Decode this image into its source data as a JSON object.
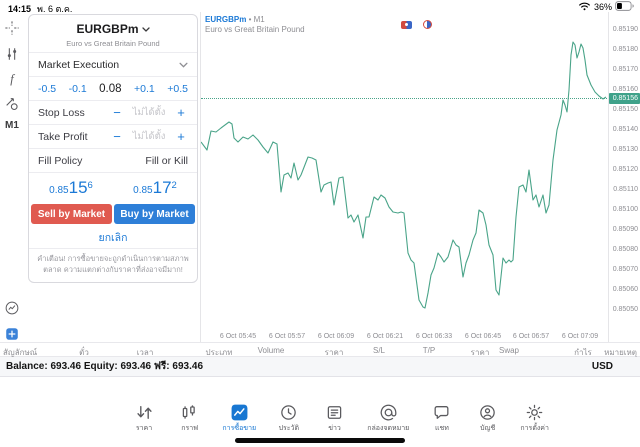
{
  "colors": {
    "accent_blue": "#1b79d6",
    "sell_red": "#e05a50",
    "buy_blue": "#2e7fd8",
    "chart_line": "#4aa489",
    "price_tag": "#3fa28a"
  },
  "status_bar": {
    "time": "14:15",
    "date": "พ. 6 ต.ค.",
    "battery_percent": "36%"
  },
  "sidebar": {
    "timeframe": "M1"
  },
  "order_panel": {
    "symbol": "EURGBPm",
    "symbol_description": "Euro vs Great Britain Pound",
    "execution_mode": "Market Execution",
    "volume": {
      "dec_large": "-0.5",
      "dec_small": "-0.1",
      "value": "0.08",
      "inc_small": "+0.1",
      "inc_large": "+0.5"
    },
    "stop_loss": {
      "label": "Stop Loss",
      "minus": "−",
      "value": "ไม่ได้ตั้ง",
      "plus": "+"
    },
    "take_profit": {
      "label": "Take Profit",
      "minus": "−",
      "value": "ไม่ได้ตั้ง",
      "plus": "+"
    },
    "fill_policy": {
      "label": "Fill Policy",
      "value": "Fill or Kill"
    },
    "sell_price": {
      "prefix": "0.85",
      "big": "15",
      "sup": "6"
    },
    "buy_price": {
      "prefix": "0.85",
      "big": "17",
      "sup": "2"
    },
    "sell_button": "Sell by Market",
    "buy_button": "Buy by Market",
    "cancel_button": "ยกเลิก",
    "warning": "คำเตือน! การซื้อขายจะถูกดำเนินการตามสภาพตลาด ความแตกต่างกับราคาที่ส่งอาจมีมาก!"
  },
  "chart": {
    "type": "line",
    "symbol": "EURGBPm",
    "separator": "•",
    "timeframe": "M1",
    "description": "Euro vs Great Britain Pound",
    "line_color": "#4aa489",
    "price_tag_color": "#3fa28a",
    "current_price": "0.85156",
    "current_price_value": 0.85156,
    "axis_top_price": 0.8519,
    "axis_step": 0.0001,
    "price_labels": [
      "0.85190",
      "0.85180",
      "0.85170",
      "0.85160",
      "0.85150",
      "0.85140",
      "0.85130",
      "0.85120",
      "0.85110",
      "0.85100",
      "0.85090",
      "0.85080",
      "0.85070",
      "0.85060",
      "0.85050"
    ],
    "time_labels": [
      "6 Oct 05:45",
      "6 Oct 05:57",
      "6 Oct 06:09",
      "6 Oct 06:21",
      "6 Oct 06:33",
      "6 Oct 06:45",
      "6 Oct 06:57",
      "6 Oct 07:09"
    ],
    "points": [
      [
        0,
        0.85134
      ],
      [
        6,
        0.8513
      ],
      [
        10,
        0.851395
      ],
      [
        15,
        0.85139
      ],
      [
        20,
        0.85141
      ],
      [
        28,
        0.85144
      ],
      [
        31,
        0.85143
      ],
      [
        33,
        0.85136
      ],
      [
        37,
        0.85134
      ],
      [
        42,
        0.851365
      ],
      [
        47,
        0.851355
      ],
      [
        52,
        0.851375
      ],
      [
        57,
        0.85135
      ],
      [
        62,
        0.851315
      ],
      [
        67,
        0.851285
      ],
      [
        72,
        0.85134
      ],
      [
        76,
        0.85133
      ],
      [
        80,
        0.85109
      ],
      [
        83,
        0.851175
      ],
      [
        87,
        0.851185
      ],
      [
        90,
        0.85116
      ],
      [
        93,
        0.851235
      ],
      [
        97,
        0.85115
      ],
      [
        100,
        0.851175
      ],
      [
        107,
        0.851265
      ],
      [
        111,
        0.85126
      ],
      [
        115,
        0.85125
      ],
      [
        120,
        0.85109
      ],
      [
        123,
        0.851125
      ],
      [
        127,
        0.851135
      ],
      [
        130,
        0.85114
      ],
      [
        133,
        0.851025
      ],
      [
        138,
        0.85116
      ],
      [
        142,
        0.851165
      ],
      [
        147,
        0.85096
      ],
      [
        150,
        0.850975
      ],
      [
        153,
        0.85094
      ],
      [
        157,
        0.850975
      ],
      [
        162,
        0.85086
      ],
      [
        165,
        0.850965
      ],
      [
        168,
        0.850965
      ],
      [
        173,
        0.851065
      ],
      [
        177,
        0.85105
      ],
      [
        180,
        0.851075
      ],
      [
        184,
        0.85106
      ],
      [
        188,
        0.851015
      ],
      [
        192,
        0.85099
      ],
      [
        197,
        0.850985
      ],
      [
        200,
        0.85099
      ],
      [
        203,
        0.850985
      ],
      [
        207,
        0.850785
      ],
      [
        210,
        0.85075
      ],
      [
        213,
        0.850735
      ],
      [
        218,
        0.85055
      ],
      [
        222,
        0.850515
      ],
      [
        224,
        0.85051
      ],
      [
        227,
        0.850585
      ],
      [
        230,
        0.850675
      ],
      [
        233,
        0.85071
      ],
      [
        237,
        0.850785
      ],
      [
        240,
        0.850765
      ],
      [
        243,
        0.85074
      ],
      [
        247,
        0.850765
      ],
      [
        252,
        0.85085
      ],
      [
        255,
        0.850825
      ],
      [
        258,
        0.850815
      ],
      [
        262,
        0.850665
      ],
      [
        265,
        0.850735
      ],
      [
        268,
        0.850775
      ],
      [
        272,
        0.85085
      ],
      [
        275,
        0.850885
      ],
      [
        278,
        0.851
      ],
      [
        282,
        0.850985
      ],
      [
        285,
        0.850925
      ],
      [
        288,
        0.850825
      ],
      [
        292,
        0.850775
      ],
      [
        295,
        0.8506
      ],
      [
        298,
        0.850575
      ],
      [
        302,
        0.85076
      ],
      [
        305,
        0.850735
      ],
      [
        308,
        0.85075
      ],
      [
        310,
        0.85074
      ],
      [
        312,
        0.85075
      ],
      [
        315,
        0.850965
      ],
      [
        318,
        0.851115
      ],
      [
        322,
        0.851125
      ],
      [
        325,
        0.85109
      ],
      [
        328,
        0.8512
      ],
      [
        332,
        0.85105
      ],
      [
        335,
        0.851075
      ],
      [
        338,
        0.851015
      ],
      [
        342,
        0.851075
      ],
      [
        345,
        0.850985
      ],
      [
        348,
        0.851025
      ],
      [
        352,
        0.85125
      ],
      [
        356,
        0.8514
      ],
      [
        360,
        0.851475
      ],
      [
        362,
        0.85155
      ],
      [
        364,
        0.851525
      ],
      [
        366,
        0.85149
      ],
      [
        368,
        0.8516
      ],
      [
        370,
        0.851775
      ],
      [
        372,
        0.85184
      ],
      [
        374,
        0.851825
      ],
      [
        376,
        0.85176
      ],
      [
        378,
        0.85179
      ],
      [
        380,
        0.85183
      ],
      [
        382,
        0.85181
      ],
      [
        384,
        0.85175
      ],
      [
        386,
        0.851675
      ],
      [
        390,
        0.851625
      ],
      [
        394,
        0.85159
      ],
      [
        398,
        0.85157
      ],
      [
        402,
        0.851555
      ],
      [
        405,
        0.851565
      ]
    ]
  },
  "trade_table": {
    "columns": [
      "สัญลักษณ์",
      "ตั๋ว",
      "เวลา",
      "ประเภท",
      "Volume",
      "ราคา",
      "S/L",
      "T/P",
      "ราคา",
      "Swap",
      "กำไร",
      "หมายเหตุ"
    ]
  },
  "account_bar": {
    "balance_text": "Balance: 693.46 Equity: 693.46 ฟรี: 693.46",
    "currency": "USD"
  },
  "tab_bar": {
    "tabs": [
      {
        "name": "tab-quotes",
        "icon": "quotes-icon",
        "label": "ราคา",
        "active": false
      },
      {
        "name": "tab-charts",
        "icon": "charts-icon",
        "label": "กราฟ",
        "active": false
      },
      {
        "name": "tab-trade",
        "icon": "trade-icon",
        "label": "การซื้อขาย",
        "active": true
      },
      {
        "name": "tab-history",
        "icon": "history-icon",
        "label": "ประวัติ",
        "active": false
      },
      {
        "name": "tab-news",
        "icon": "news-icon",
        "label": "ข่าว",
        "active": false
      },
      {
        "name": "tab-mailbox",
        "icon": "mailbox-icon",
        "label": "กล่องจดหมาย",
        "active": false
      },
      {
        "name": "tab-chat",
        "icon": "chat-icon",
        "label": "แชท",
        "active": false
      },
      {
        "name": "tab-accounts",
        "icon": "accounts-icon",
        "label": "บัญชี",
        "active": false
      },
      {
        "name": "tab-settings",
        "icon": "settings-icon",
        "label": "การตั้งค่า",
        "active": false
      }
    ]
  }
}
